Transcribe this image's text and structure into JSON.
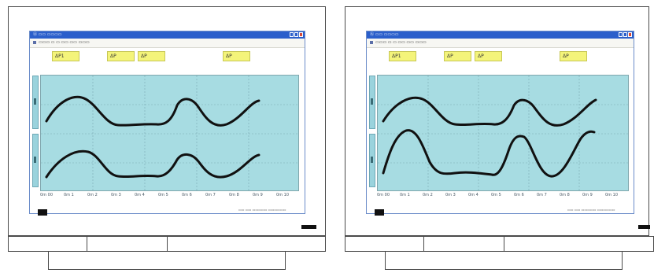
{
  "screens": [
    {
      "window": {
        "title": "Ⓐ ▭▭ ▭▭▭▭",
        "toolbar_text": "▭▭▭ ▭ ▭ ▭▭ ▭▭ ▭▭▭"
      },
      "yellow_boxes": [
        "ΔP1",
        "ΔP",
        "ΔP",
        "ΔP"
      ],
      "x_labels": [
        "0m 00",
        "0m 1",
        "0m 2",
        "0m 3",
        "0m 4",
        "0m 5",
        "0m 6",
        "0m 7",
        "0m 8",
        "0m 9",
        "0m 10"
      ],
      "status": "▭▭ ▭▭ ▭▭▭▭▭ ▭▭▭▭▭▭"
    },
    {
      "window": {
        "title": "Ⓐ ▭▭ ▭▭▭▭",
        "toolbar_text": "▭▭▭ ▭ ▭ ▭▭ ▭▭ ▭▭▭"
      },
      "yellow_boxes": [
        "ΔP1",
        "ΔP",
        "ΔP",
        "ΔP"
      ],
      "x_labels": [
        "0m 00",
        "0m 1",
        "0m 2",
        "0m 3",
        "0m 4",
        "0m 5",
        "0m 6",
        "0m 7",
        "0m 8",
        "0m 9",
        "0m 10"
      ],
      "status": "▭▭ ▭▭ ▭▭▭▭▭ ▭▭▭▭▭▭"
    }
  ],
  "colors": {
    "plot_bg": "#a7dce2",
    "yellow": "#f4f47a",
    "titlebar": "#2b5fcb",
    "trace": "#111111"
  }
}
